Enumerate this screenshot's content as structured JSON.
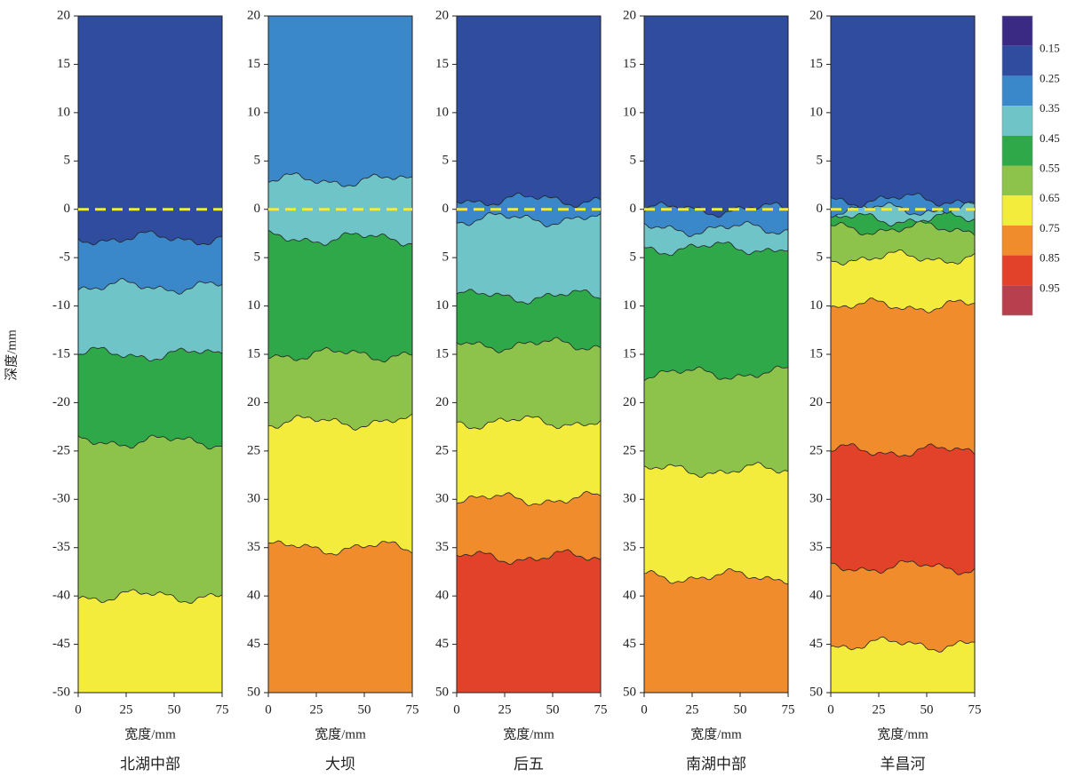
{
  "chart_data": [
    {
      "type": "contour",
      "title": "北湖中部",
      "xlabel": "宽度/mm",
      "ylabel": "深度/mm",
      "xlim": [
        0,
        75
      ],
      "ylim": [
        -50,
        20
      ],
      "xticks": [
        0,
        25,
        50,
        75
      ],
      "yticks": [
        20,
        15,
        10,
        5,
        0,
        -5,
        -10,
        -15,
        -20,
        -25,
        -30,
        -35,
        -40,
        -45,
        -50
      ],
      "reference_y": 0,
      "layers": [
        {
          "value": 0.2,
          "depth": -3
        },
        {
          "value": 0.3,
          "depth": -8
        },
        {
          "value": 0.4,
          "depth": -15
        },
        {
          "value": 0.5,
          "depth": -24
        },
        {
          "value": 0.6,
          "depth": -40
        },
        {
          "value": 0.7,
          "depth": -50
        }
      ]
    },
    {
      "type": "contour",
      "title": "大坝",
      "xlabel": "宽度/mm",
      "xlim": [
        0,
        75
      ],
      "ylim": [
        -50,
        20
      ],
      "xticks": [
        0,
        25,
        50,
        75
      ],
      "yticks": [
        20,
        15,
        10,
        5,
        0,
        {
          "value": -5,
          "label": "5"
        },
        {
          "value": -10,
          "label": "10"
        },
        {
          "value": -15,
          "label": "15"
        },
        {
          "value": -20,
          "label": "20"
        },
        {
          "value": -25,
          "label": "25"
        },
        {
          "value": -30,
          "label": "30"
        },
        {
          "value": -35,
          "label": "35"
        },
        {
          "value": -40,
          "label": "40"
        },
        {
          "value": -45,
          "label": "45"
        },
        {
          "value": -50,
          "label": "50"
        }
      ],
      "reference_y": 0,
      "layers": [
        {
          "value": 0.3,
          "depth": 3
        },
        {
          "value": 0.4,
          "depth": -3
        },
        {
          "value": 0.5,
          "depth": -15
        },
        {
          "value": 0.6,
          "depth": -22
        },
        {
          "value": 0.7,
          "depth": -35
        },
        {
          "value": 0.8,
          "depth": -50
        }
      ]
    },
    {
      "type": "contour",
      "title": "后五",
      "xlabel": "宽度/mm",
      "xlim": [
        0,
        75
      ],
      "ylim": [
        -50,
        20
      ],
      "xticks": [
        0,
        25,
        50,
        75
      ],
      "yticks": [
        20,
        15,
        10,
        5,
        0,
        {
          "value": -5,
          "label": "5"
        },
        {
          "value": -10,
          "label": "10"
        },
        {
          "value": -15,
          "label": "15"
        },
        {
          "value": -20,
          "label": "20"
        },
        {
          "value": -25,
          "label": "25"
        },
        {
          "value": -30,
          "label": "30"
        },
        {
          "value": -35,
          "label": "35"
        },
        {
          "value": -40,
          "label": "40"
        },
        {
          "value": -45,
          "label": "45"
        },
        {
          "value": -50,
          "label": "50"
        }
      ],
      "reference_y": 0,
      "layers": [
        {
          "value": 0.2,
          "depth": 1
        },
        {
          "value": 0.3,
          "depth": -1
        },
        {
          "value": 0.4,
          "depth": -9
        },
        {
          "value": 0.5,
          "depth": -14
        },
        {
          "value": 0.6,
          "depth": -22
        },
        {
          "value": 0.7,
          "depth": -30
        },
        {
          "value": 0.8,
          "depth": -36
        },
        {
          "value": 0.9,
          "depth": -50
        }
      ]
    },
    {
      "type": "contour",
      "title": "南湖中部",
      "xlabel": "宽度/mm",
      "xlim": [
        0,
        75
      ],
      "ylim": [
        -50,
        20
      ],
      "xticks": [
        0,
        25,
        50,
        75
      ],
      "yticks": [
        20,
        15,
        10,
        5,
        0,
        {
          "value": -5,
          "label": "5"
        },
        {
          "value": -10,
          "label": "10"
        },
        {
          "value": -15,
          "label": "15"
        },
        {
          "value": -20,
          "label": "20"
        },
        {
          "value": -25,
          "label": "25"
        },
        {
          "value": -30,
          "label": "30"
        },
        {
          "value": -35,
          "label": "35"
        },
        {
          "value": -40,
          "label": "40"
        },
        {
          "value": -45,
          "label": "45"
        },
        {
          "value": -50,
          "label": "50"
        }
      ],
      "reference_y": 0,
      "layers": [
        {
          "value": 0.2,
          "depth": 0
        },
        {
          "value": 0.3,
          "depth": -2
        },
        {
          "value": 0.4,
          "depth": -4
        },
        {
          "value": 0.5,
          "depth": -17
        },
        {
          "value": 0.6,
          "depth": -27
        },
        {
          "value": 0.7,
          "depth": -38
        },
        {
          "value": 0.8,
          "depth": -50
        }
      ]
    },
    {
      "type": "contour",
      "title": "羊昌河",
      "xlabel": "宽度/mm",
      "xlim": [
        0,
        75
      ],
      "ylim": [
        -50,
        20
      ],
      "xticks": [
        0,
        25,
        50,
        75
      ],
      "yticks": [
        20,
        15,
        10,
        5,
        0,
        {
          "value": -5,
          "label": "5"
        },
        {
          "value": -10,
          "label": "10"
        },
        {
          "value": -15,
          "label": "15"
        },
        {
          "value": -20,
          "label": "20"
        },
        {
          "value": -25,
          "label": "25"
        },
        {
          "value": -30,
          "label": "30"
        },
        {
          "value": -35,
          "label": "35"
        },
        {
          "value": -40,
          "label": "40"
        },
        {
          "value": -45,
          "label": "45"
        },
        {
          "value": -50,
          "label": "50"
        }
      ],
      "reference_y": 0,
      "layers": [
        {
          "value": 0.2,
          "depth": 1
        },
        {
          "value": 0.3,
          "depth": 0
        },
        {
          "value": 0.4,
          "depth": -1
        },
        {
          "value": 0.5,
          "depth": -2
        },
        {
          "value": 0.6,
          "depth": -5
        },
        {
          "value": 0.7,
          "depth": -10
        },
        {
          "value": 0.8,
          "depth": -25
        },
        {
          "value": 0.9,
          "depth": -37
        },
        {
          "value": 0.8,
          "depth": -45
        },
        {
          "value": 0.7,
          "depth": -50
        }
      ]
    }
  ],
  "colorbar": {
    "levels": [
      0.15,
      0.25,
      0.35,
      0.45,
      0.55,
      0.65,
      0.75,
      0.85,
      0.95
    ],
    "colors": [
      "#3b2a84",
      "#2f4c9e",
      "#3a87c9",
      "#6ec4c6",
      "#2fa84a",
      "#8dc34a",
      "#f4ec3c",
      "#f08c2c",
      "#e2412a",
      "#b8404e"
    ]
  }
}
